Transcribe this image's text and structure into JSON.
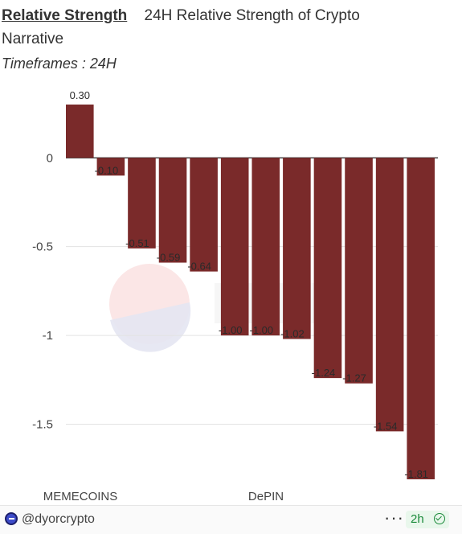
{
  "header": {
    "title": "Relative Strength",
    "description_line1": "24H Relative Strength of Crypto",
    "description_line2": "Narrative",
    "timeframes": "Timeframes : 24H"
  },
  "chart_data": {
    "type": "bar",
    "categories": [
      "MEMECOINS",
      "",
      "",
      "",
      "",
      "",
      "",
      "",
      "",
      "",
      "",
      ""
    ],
    "shown_category_labels": [
      "MEMECOINS",
      "DePIN"
    ],
    "values": [
      0.3,
      -0.1,
      -0.51,
      -0.59,
      -0.64,
      -1.0,
      -1.0,
      -1.02,
      -1.24,
      -1.27,
      -1.54,
      -1.81
    ],
    "value_labels": [
      "0.30",
      "-0.10",
      "-0.51",
      "-0.59",
      "-0.64",
      "-1.00",
      "-1.00",
      "-1.02",
      "-1.24",
      "-1.27",
      "-1.54",
      "-1.81"
    ],
    "yticks": [
      "0",
      "-0.5",
      "-1",
      "-1.5"
    ],
    "ytick_values": [
      0,
      -0.5,
      -1,
      -1.5
    ],
    "ylim": [
      -1.81,
      0.3
    ],
    "bar_color": "#7a2a2a",
    "grid": true,
    "title": "",
    "xlabel": "",
    "ylabel": ""
  },
  "footer": {
    "handle": "@dyorcrypto",
    "more": "···",
    "time": "2h"
  },
  "colors": {
    "accent_green": "#1a8a3a",
    "avatar_blue": "#3d4bc9"
  }
}
